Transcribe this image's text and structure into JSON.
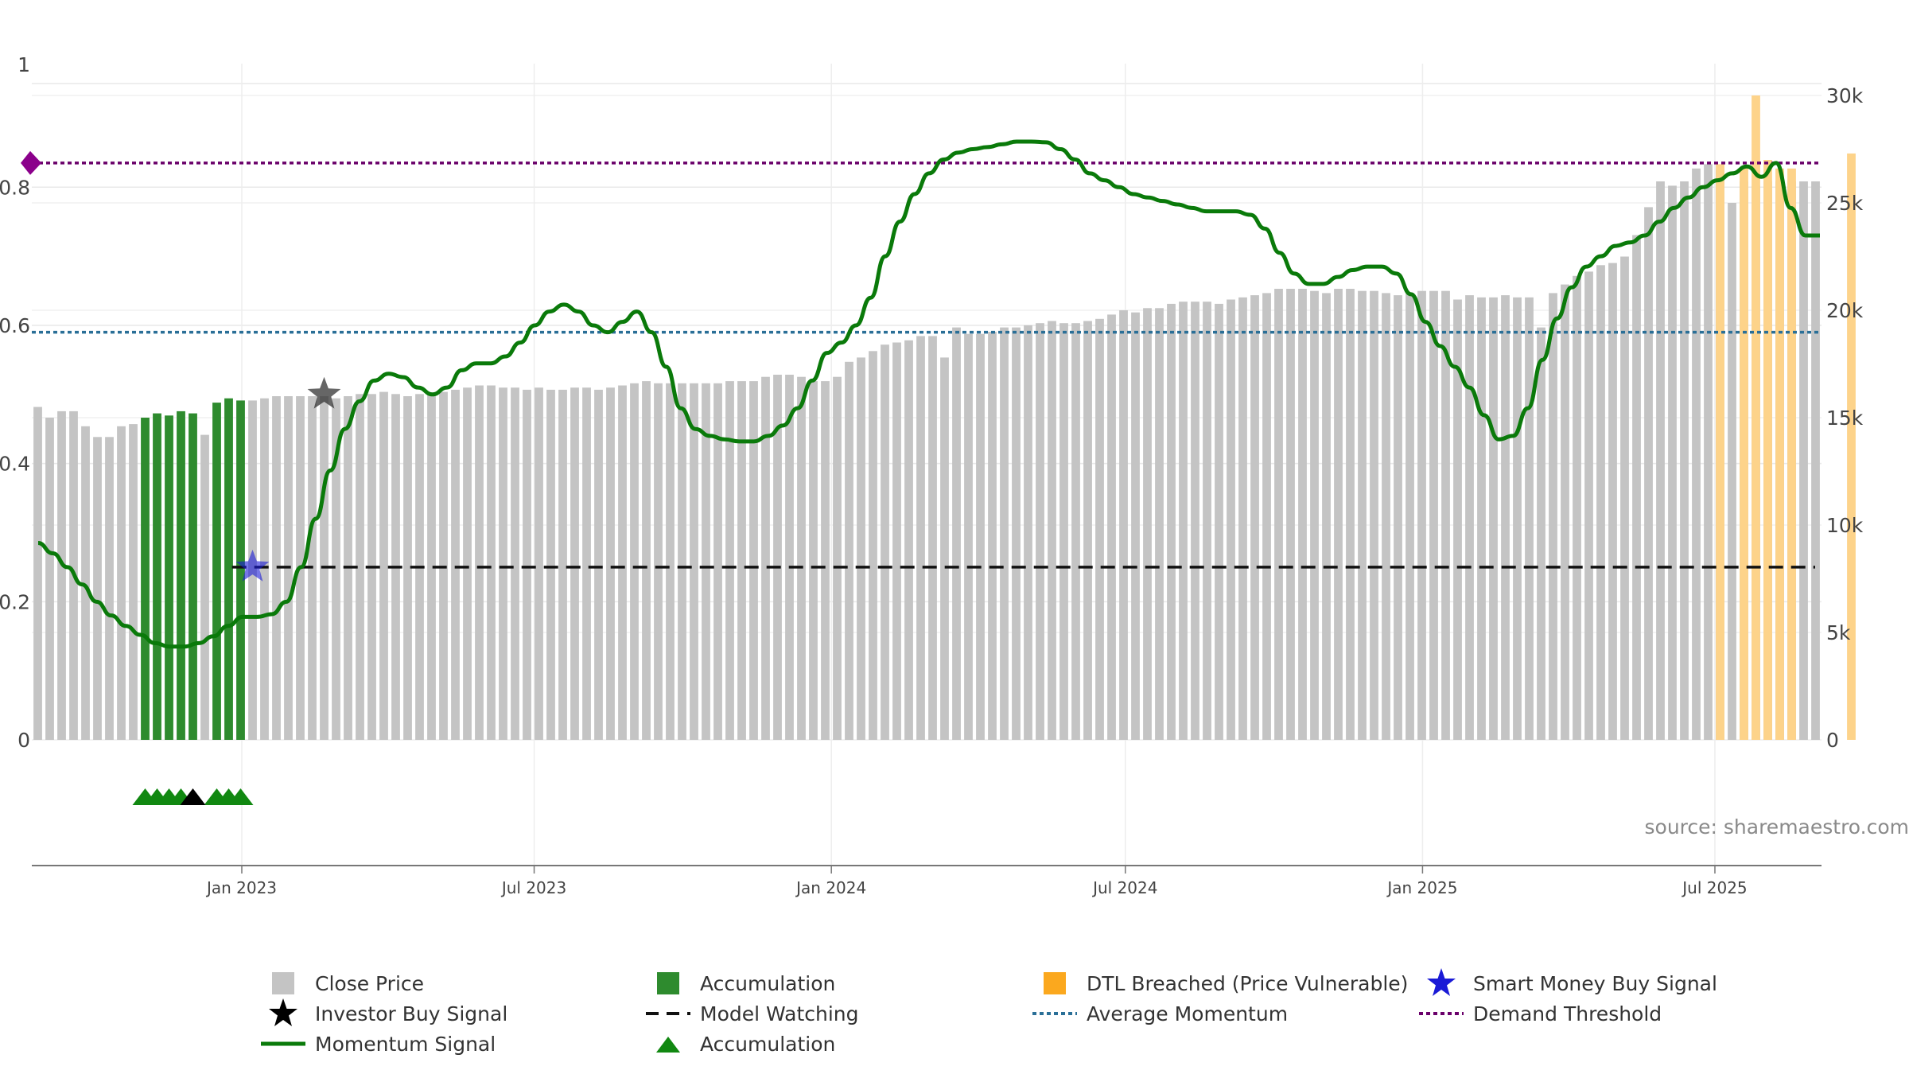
{
  "chart_data": {
    "type": "bar+line",
    "title": "",
    "source_note": "source: sharemaestro.com",
    "x_tick_labels": [
      "Jan 2023",
      "Jul 2023",
      "Jan 2024",
      "Jul 2024",
      "Jan 2025",
      "Jul 2025"
    ],
    "x_range": [
      "2022-08-24",
      "2025-09-05"
    ],
    "left_axis": {
      "ticks": [
        0,
        0.2,
        0.4,
        0.6,
        0.8
      ],
      "tick_labels": [
        "0",
        "0.2",
        "0.4",
        "0.6",
        "0.8"
      ],
      "top_label": "1",
      "ylim": [
        0,
        0.95
      ]
    },
    "right_axis": {
      "ticks": [
        0,
        5000,
        10000,
        15000,
        20000,
        25000,
        30000
      ],
      "tick_labels": [
        "0",
        "5k",
        "10k",
        "15k",
        "20k",
        "25k",
        "30k"
      ],
      "ylim": [
        0,
        30000
      ]
    },
    "colors": {
      "close": "#c4c4c4",
      "accumulation": "#2e8b2e",
      "dtl": "#fdd38a",
      "momentum": "#0a7a0a",
      "avg_momentum": "#2a6f97",
      "demand": "#6a006a",
      "model": "#111111",
      "smart_money": "#1a1ad6"
    },
    "close_price": [
      15500,
      15000,
      15300,
      15300,
      14600,
      14100,
      14100,
      14600,
      14700,
      15000,
      15200,
      15100,
      15300,
      15200,
      14200,
      15700,
      15900,
      15800,
      15800,
      15900,
      16000,
      16000,
      16000,
      16000,
      16000,
      15900,
      16000,
      16100,
      16100,
      16200,
      16100,
      16000,
      16100,
      16100,
      16200,
      16300,
      16400,
      16500,
      16500,
      16400,
      16400,
      16300,
      16400,
      16300,
      16300,
      16400,
      16400,
      16300,
      16400,
      16500,
      16600,
      16700,
      16600,
      16600,
      16600,
      16600,
      16600,
      16600,
      16700,
      16700,
      16700,
      16900,
      17000,
      17000,
      16900,
      16700,
      16700,
      16900,
      17600,
      17800,
      18100,
      18400,
      18500,
      18600,
      18800,
      18800,
      17800,
      19200,
      18900,
      18900,
      19000,
      19200,
      19200,
      19300,
      19400,
      19500,
      19400,
      19400,
      19500,
      19600,
      19800,
      20000,
      19900,
      20100,
      20100,
      20300,
      20400,
      20400,
      20400,
      20300,
      20500,
      20600,
      20700,
      20800,
      21000,
      21000,
      21000,
      20900,
      20800,
      21000,
      21000,
      20900,
      20900,
      20800,
      20700,
      20800,
      20900,
      20900,
      20900,
      20500,
      20700,
      20600,
      20600,
      20700,
      20600,
      20600,
      19200,
      20800,
      21200,
      21600,
      21800,
      22100,
      22200,
      22500,
      23500,
      24800,
      26000,
      25800,
      26000,
      26600,
      26800,
      26600,
      25000,
      26000,
      25800,
      26000,
      26000,
      26000,
      26000,
      26000
    ],
    "accumulation_bars": [
      9,
      10,
      11,
      12,
      13,
      15,
      16,
      17
    ],
    "dtl_bars": [
      141,
      143,
      144,
      145,
      146,
      147,
      152
    ],
    "dtl_values": [
      26800,
      26600,
      30000,
      27000,
      26600,
      26600,
      27300
    ],
    "momentum_signal": [
      0.285,
      0.27,
      0.25,
      0.225,
      0.2,
      0.18,
      0.165,
      0.152,
      0.14,
      0.135,
      0.135,
      0.14,
      0.15,
      0.165,
      0.178,
      0.178,
      0.182,
      0.2,
      0.25,
      0.32,
      0.39,
      0.45,
      0.49,
      0.52,
      0.53,
      0.525,
      0.51,
      0.5,
      0.51,
      0.535,
      0.545,
      0.545,
      0.555,
      0.575,
      0.6,
      0.62,
      0.63,
      0.62,
      0.6,
      0.59,
      0.605,
      0.62,
      0.59,
      0.54,
      0.48,
      0.45,
      0.44,
      0.435,
      0.432,
      0.432,
      0.44,
      0.455,
      0.48,
      0.52,
      0.56,
      0.575,
      0.6,
      0.64,
      0.7,
      0.75,
      0.79,
      0.82,
      0.84,
      0.85,
      0.855,
      0.858,
      0.862,
      0.866,
      0.866,
      0.865,
      0.855,
      0.84,
      0.82,
      0.81,
      0.8,
      0.79,
      0.785,
      0.78,
      0.775,
      0.77,
      0.765,
      0.765,
      0.765,
      0.76,
      0.74,
      0.705,
      0.675,
      0.66,
      0.66,
      0.67,
      0.68,
      0.685,
      0.685,
      0.675,
      0.645,
      0.605,
      0.57,
      0.54,
      0.51,
      0.47,
      0.435,
      0.44,
      0.48,
      0.55,
      0.61,
      0.655,
      0.685,
      0.7,
      0.715,
      0.72,
      0.73,
      0.75,
      0.77,
      0.785,
      0.8,
      0.81,
      0.82,
      0.83,
      0.815,
      0.835,
      0.77,
      0.73,
      0.73
    ],
    "average_momentum": 0.59,
    "demand_threshold": 0.835,
    "model_watching": {
      "value": 0.25,
      "from_index": 17
    },
    "investor_buy_signal": {
      "index": 24,
      "value": 0.5
    },
    "smart_money_buy_signal": {
      "index": 18,
      "value": 0.25
    },
    "accumulation_markers": [
      9,
      10,
      11,
      12,
      15,
      16,
      17
    ],
    "investor_markers": [
      13
    ],
    "demand_marker_label": "",
    "legend": [
      {
        "key": "close",
        "label": "Close Price"
      },
      {
        "key": "accumulation",
        "label": "Accumulation"
      },
      {
        "key": "dtl",
        "label": "DTL Breached (Price Vulnerable)"
      },
      {
        "key": "smart_money",
        "label": "Smart Money Buy Signal"
      },
      {
        "key": "investor",
        "label": "Investor Buy Signal"
      },
      {
        "key": "model",
        "label": "Model Watching"
      },
      {
        "key": "avg",
        "label": "Average Momentum"
      },
      {
        "key": "demand",
        "label": "Demand Threshold"
      },
      {
        "key": "momentum",
        "label": "Momentum Signal"
      },
      {
        "key": "acc_marker",
        "label": "Accumulation"
      }
    ]
  }
}
